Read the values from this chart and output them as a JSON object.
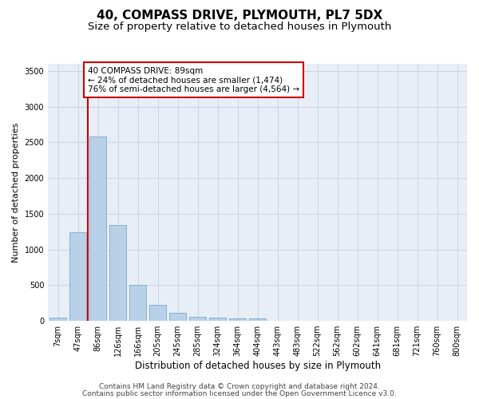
{
  "title1": "40, COMPASS DRIVE, PLYMOUTH, PL7 5DX",
  "title2": "Size of property relative to detached houses in Plymouth",
  "xlabel": "Distribution of detached houses by size in Plymouth",
  "ylabel": "Number of detached properties",
  "categories": [
    "7sqm",
    "47sqm",
    "86sqm",
    "126sqm",
    "166sqm",
    "205sqm",
    "245sqm",
    "285sqm",
    "324sqm",
    "364sqm",
    "404sqm",
    "443sqm",
    "483sqm",
    "522sqm",
    "562sqm",
    "602sqm",
    "641sqm",
    "681sqm",
    "721sqm",
    "760sqm",
    "800sqm"
  ],
  "bar_values": [
    50,
    1240,
    2580,
    1340,
    500,
    220,
    110,
    55,
    50,
    40,
    35,
    5,
    5,
    5,
    5,
    0,
    0,
    0,
    0,
    0,
    0
  ],
  "bar_color": "#b8d0e8",
  "bar_edge_color": "#7aaace",
  "grid_color": "#c8d4e4",
  "background_color": "#e8eef6",
  "vline_color": "#cc0000",
  "vline_x": 1.5,
  "annotation_text": "40 COMPASS DRIVE: 89sqm\n← 24% of detached houses are smaller (1,474)\n76% of semi-detached houses are larger (4,564) →",
  "annotation_box_color": "#ffffff",
  "annotation_border_color": "#cc0000",
  "ylim": [
    0,
    3600
  ],
  "yticks": [
    0,
    500,
    1000,
    1500,
    2000,
    2500,
    3000,
    3500
  ],
  "footer1": "Contains HM Land Registry data © Crown copyright and database right 2024.",
  "footer2": "Contains public sector information licensed under the Open Government Licence v3.0.",
  "title1_fontsize": 11,
  "title2_fontsize": 9.5,
  "xlabel_fontsize": 8.5,
  "ylabel_fontsize": 8,
  "tick_fontsize": 7,
  "annotation_fontsize": 7.5,
  "footer_fontsize": 6.5
}
